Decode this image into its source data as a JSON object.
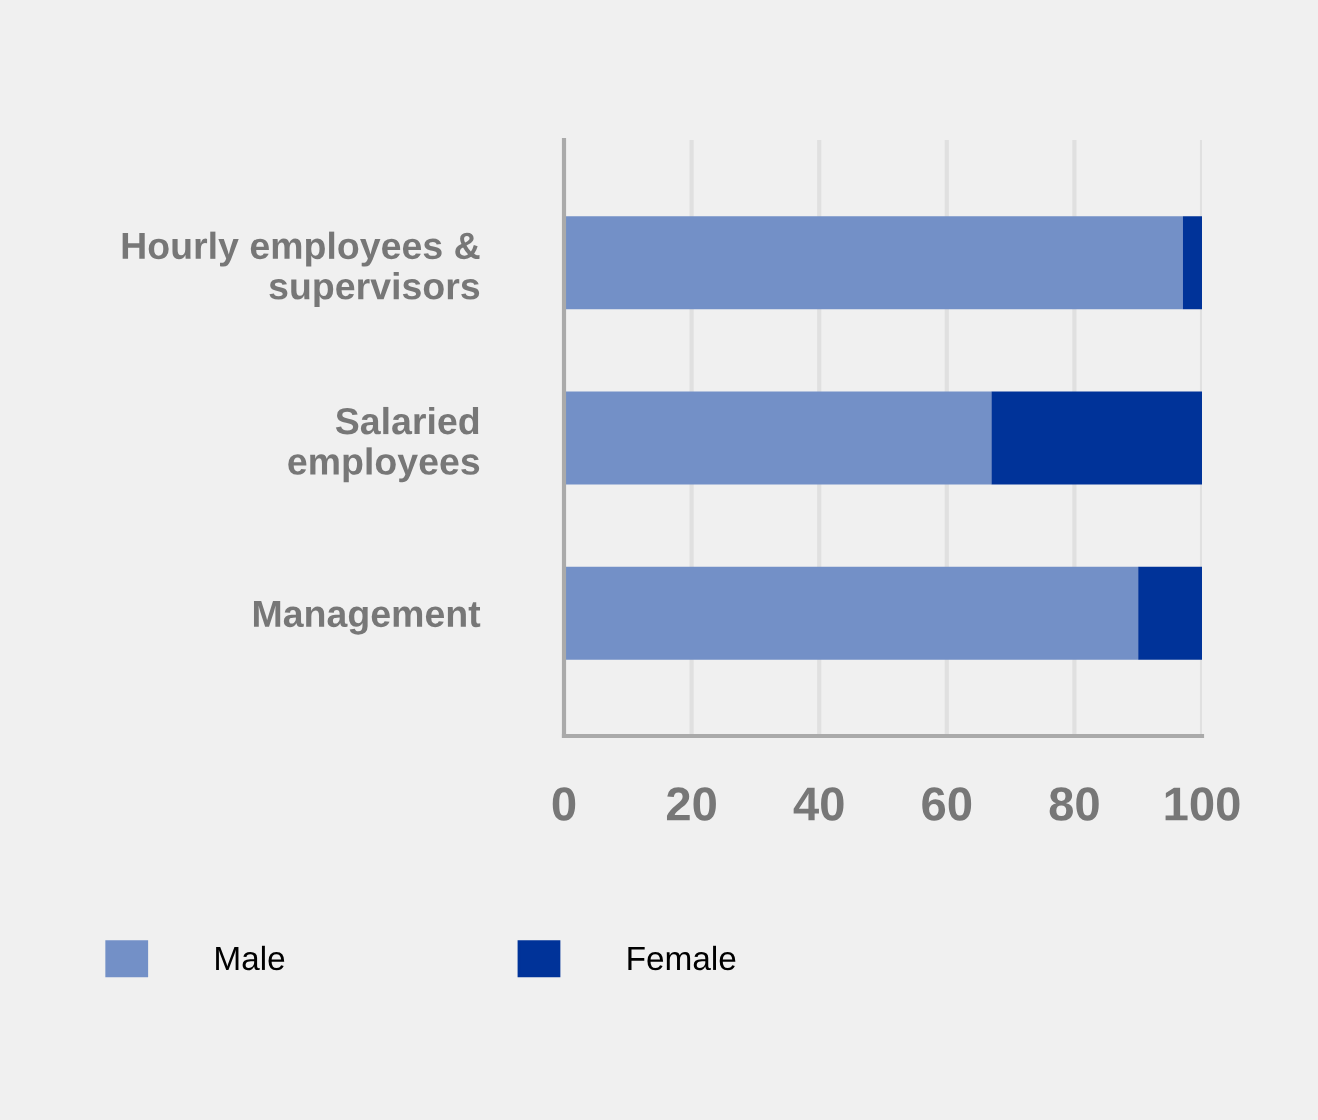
{
  "chart_data": {
    "type": "bar",
    "orientation": "horizontal",
    "stacked": true,
    "categories": [
      "Hourly employees &\nsupervisors",
      "Salaried\nemployees",
      "Management"
    ],
    "series": [
      {
        "name": "Male",
        "color": "#7390c7",
        "values": [
          97,
          67,
          90
        ]
      },
      {
        "name": "Female",
        "color": "#003399",
        "values": [
          3,
          33,
          10
        ]
      }
    ],
    "xlim": [
      0,
      100
    ],
    "xticks": [
      0,
      20,
      40,
      60,
      80,
      100
    ],
    "grid": "x",
    "legend": "bottom"
  }
}
